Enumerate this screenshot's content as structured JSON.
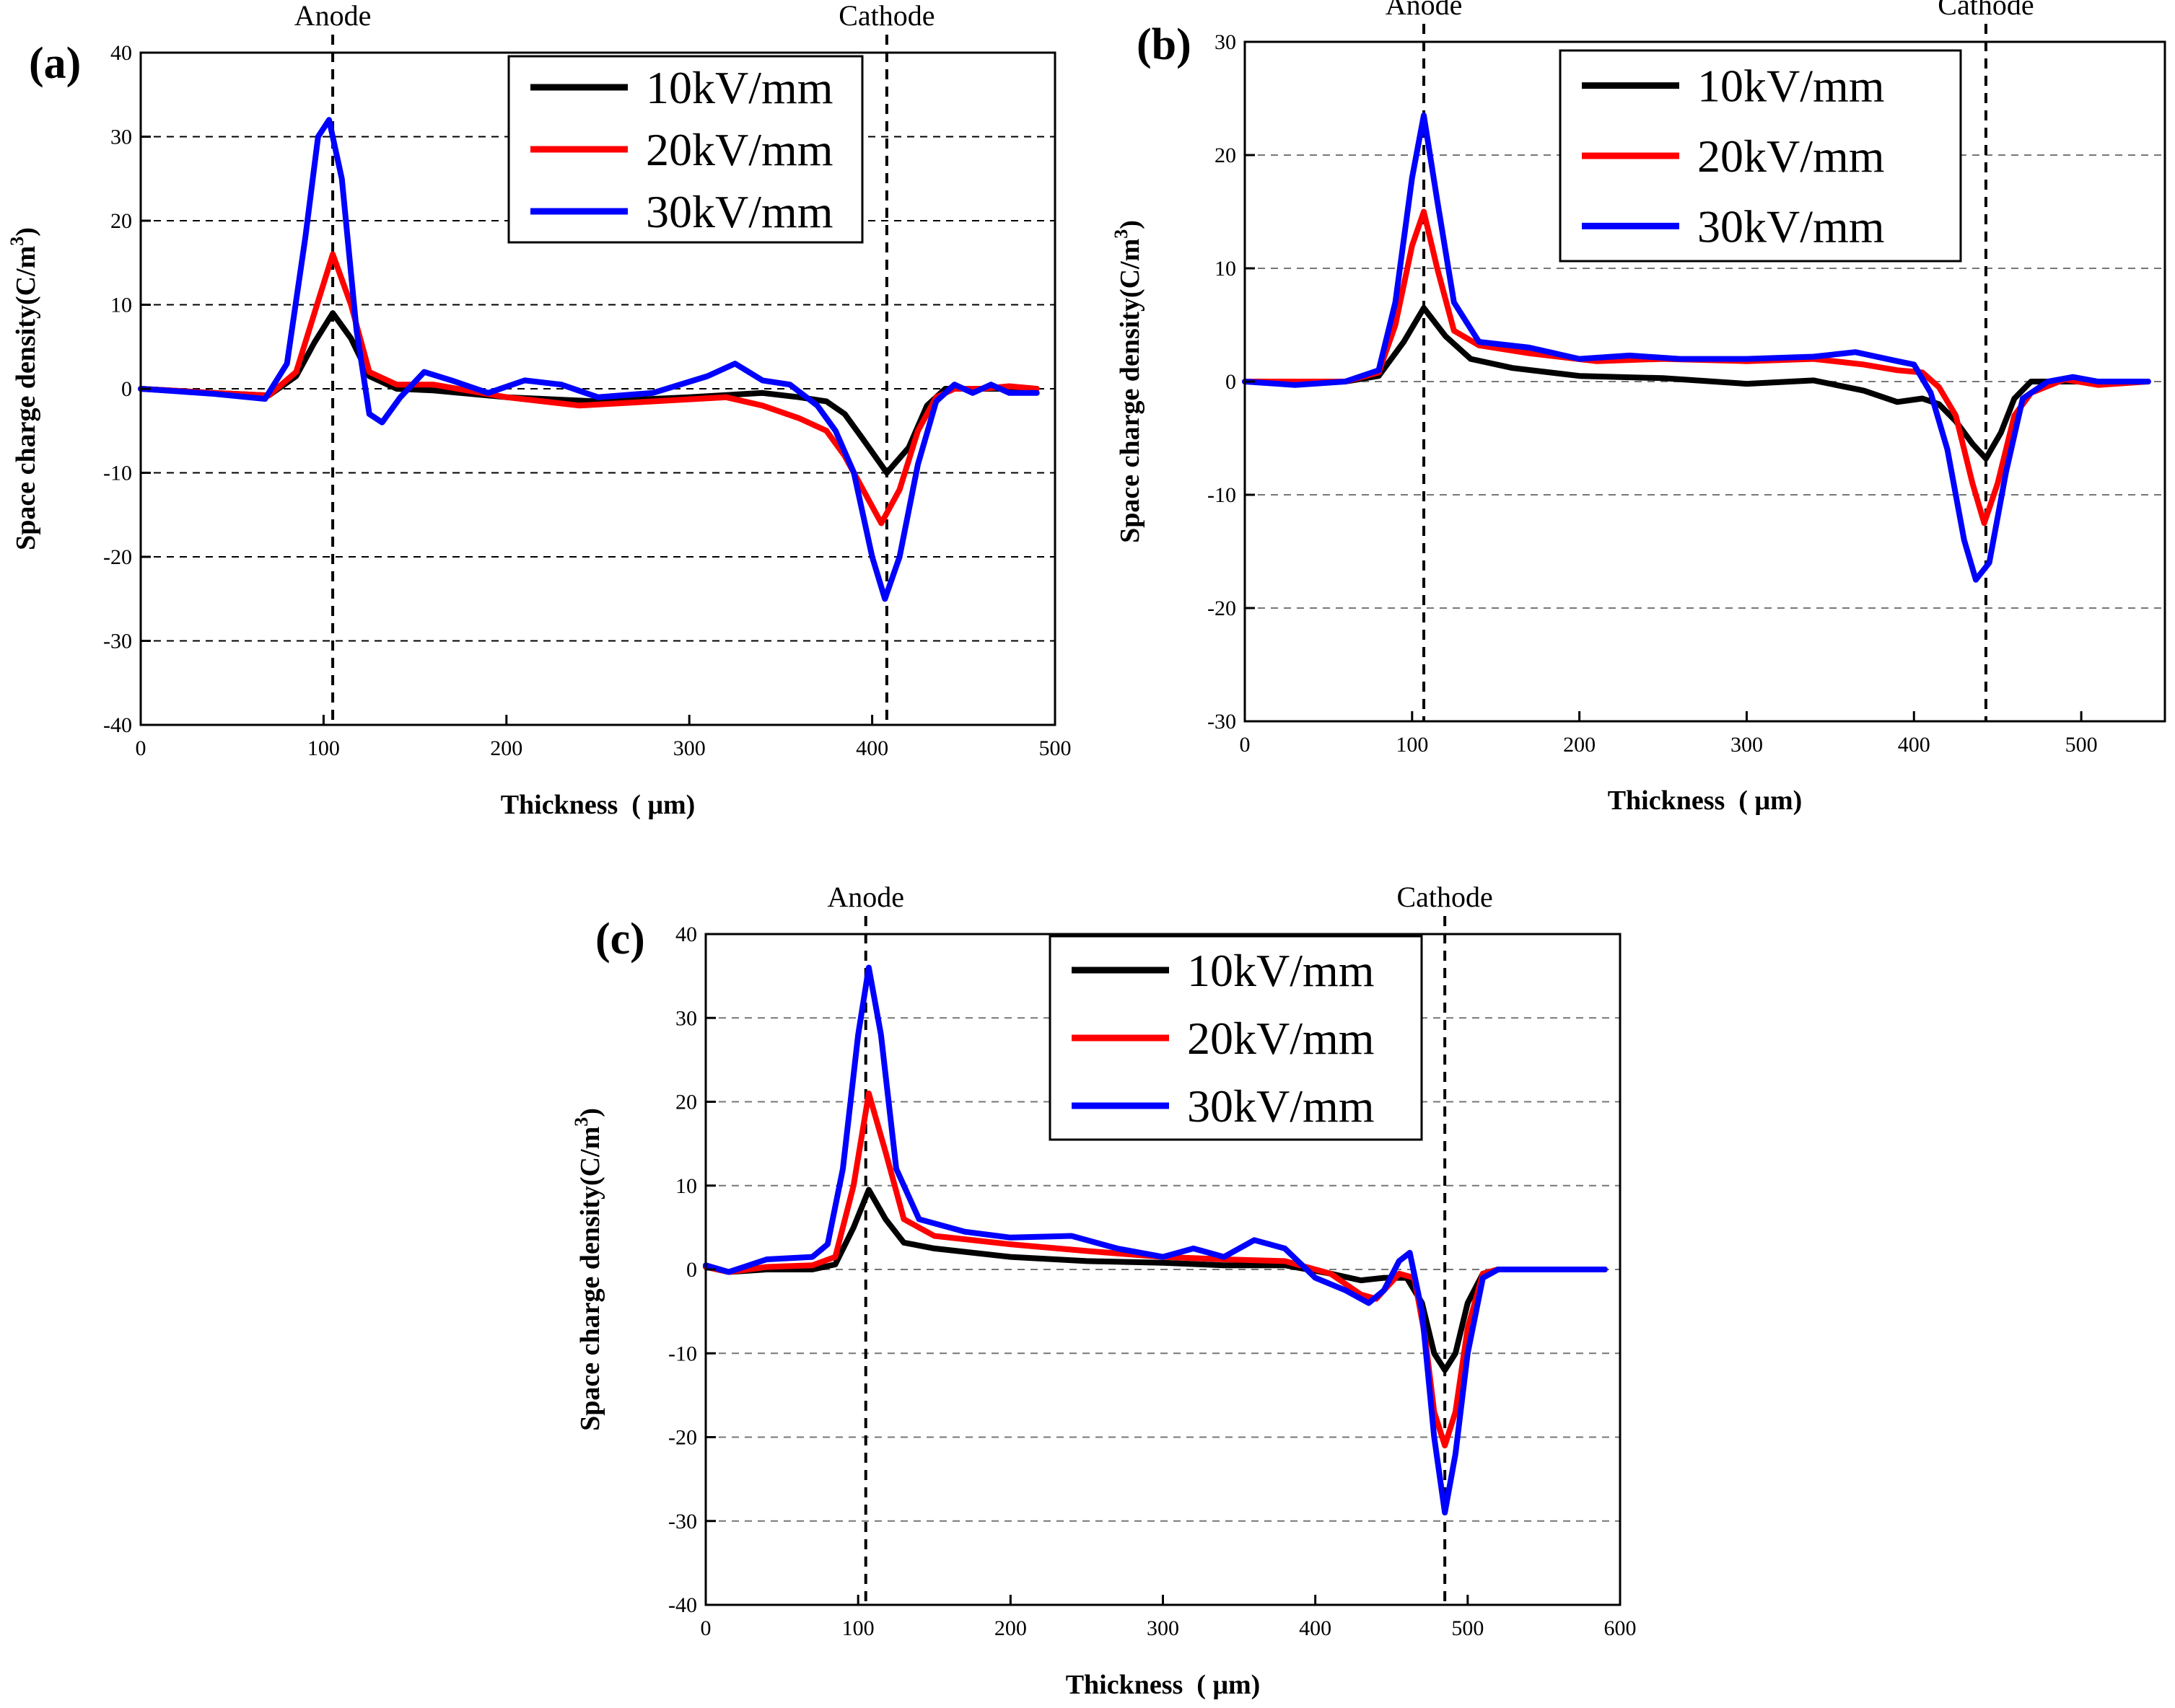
{
  "chart_data": [
    {
      "id": "a",
      "type": "line",
      "panel_label": "(a)",
      "anode_label": "Anode",
      "cathode_label": "Cathode",
      "anode_x": 105,
      "cathode_x": 408,
      "xlabel": "Thickness  ( μm)",
      "ylabel": "Space charge density(C/m",
      "ylabel_sup": "3",
      "ylabel_close": ")",
      "xlim": [
        0,
        500
      ],
      "ylim": [
        -40,
        40
      ],
      "xticks": [
        0,
        100,
        200,
        300,
        400,
        500
      ],
      "yticks": [
        -40,
        -30,
        -20,
        -10,
        0,
        10,
        20,
        30,
        40
      ],
      "grid": "horizontal dashed",
      "legend": "top-right",
      "series": [
        {
          "name": "10kV/mm",
          "color": "#000000",
          "x": [
            0,
            40,
            70,
            85,
            95,
            105,
            115,
            125,
            140,
            160,
            200,
            250,
            300,
            340,
            360,
            375,
            385,
            395,
            408,
            420,
            430,
            440,
            450,
            470,
            490
          ],
          "y": [
            0,
            -0.5,
            -0.8,
            1.5,
            5.5,
            9,
            6,
            1.5,
            0,
            -0.2,
            -1,
            -1.5,
            -1,
            -0.5,
            -1,
            -1.5,
            -3,
            -6,
            -10,
            -7,
            -2,
            0,
            0,
            0,
            0
          ]
        },
        {
          "name": "20kV/mm",
          "color": "#ff0000",
          "x": [
            0,
            40,
            70,
            85,
            95,
            105,
            115,
            125,
            140,
            160,
            200,
            240,
            280,
            320,
            340,
            360,
            375,
            385,
            395,
            405,
            415,
            425,
            435,
            445,
            460,
            475,
            490
          ],
          "y": [
            0,
            -0.5,
            -0.8,
            2,
            9,
            16,
            10,
            2,
            0.5,
            0.5,
            -1,
            -2,
            -1.5,
            -1,
            -2,
            -3.5,
            -5,
            -8,
            -12,
            -16,
            -12,
            -5,
            -1,
            0,
            0,
            0.3,
            0
          ]
        },
        {
          "name": "30kV/mm",
          "color": "#0000ff",
          "x": [
            0,
            40,
            68,
            80,
            90,
            97,
            103,
            110,
            118,
            125,
            132,
            142,
            155,
            170,
            190,
            210,
            230,
            250,
            280,
            310,
            325,
            340,
            355,
            370,
            380,
            390,
            400,
            407,
            415,
            425,
            435,
            445,
            455,
            465,
            475,
            490
          ],
          "y": [
            0,
            -0.6,
            -1.2,
            3,
            18,
            30,
            32,
            25,
            7,
            -3,
            -4,
            -1,
            2,
            1,
            -0.5,
            1,
            0.5,
            -1,
            -0.5,
            1.5,
            3,
            1,
            0.5,
            -2,
            -5,
            -10,
            -20,
            -25,
            -20,
            -9,
            -1.5,
            0.5,
            -0.5,
            0.5,
            -0.5,
            -0.5
          ]
        }
      ]
    },
    {
      "id": "b",
      "type": "line",
      "panel_label": "(b)",
      "anode_label": "Anode",
      "cathode_label": "Cathode",
      "anode_x": 107,
      "cathode_x": 443,
      "xlabel": "Thickness  ( μm)",
      "ylabel": "Space charge density(C/m",
      "ylabel_sup": "3",
      "ylabel_close": ")",
      "xlim": [
        0,
        550
      ],
      "ylim": [
        -30,
        30
      ],
      "xticks": [
        0,
        100,
        200,
        300,
        400,
        500
      ],
      "yticks": [
        -30,
        -20,
        -10,
        0,
        10,
        20,
        30
      ],
      "grid": "horizontal dashed",
      "legend": "top-right",
      "series": [
        {
          "name": "10kV/mm",
          "color": "#000000",
          "x": [
            0,
            30,
            60,
            80,
            95,
            107,
            120,
            135,
            160,
            200,
            250,
            300,
            340,
            370,
            390,
            405,
            415,
            425,
            435,
            443,
            452,
            460,
            470,
            490,
            510,
            540
          ],
          "y": [
            0,
            0,
            0,
            0.5,
            3.5,
            6.5,
            4,
            2,
            1.2,
            0.5,
            0.3,
            -0.2,
            0.1,
            -0.8,
            -1.8,
            -1.5,
            -2,
            -3.5,
            -5.5,
            -6.8,
            -4.5,
            -1.5,
            0,
            0,
            0,
            0
          ]
        },
        {
          "name": "20kV/mm",
          "color": "#ff0000",
          "x": [
            0,
            30,
            60,
            80,
            90,
            100,
            107,
            115,
            125,
            140,
            170,
            210,
            250,
            300,
            340,
            370,
            390,
            405,
            415,
            425,
            435,
            442,
            450,
            460,
            470,
            490,
            510,
            540
          ],
          "y": [
            0,
            0,
            0,
            0.8,
            5,
            12,
            15,
            10,
            4.5,
            3.2,
            2.5,
            1.8,
            2,
            1.8,
            2,
            1.5,
            1,
            0.8,
            -0.5,
            -3,
            -9,
            -12.5,
            -9,
            -3,
            -1,
            0.2,
            -0.3,
            0
          ]
        },
        {
          "name": "30kV/mm",
          "color": "#0000ff",
          "x": [
            0,
            30,
            60,
            80,
            90,
            100,
            107,
            115,
            125,
            140,
            170,
            200,
            230,
            260,
            300,
            340,
            365,
            390,
            400,
            410,
            420,
            430,
            437,
            445,
            455,
            465,
            480,
            495,
            510,
            540
          ],
          "y": [
            0,
            -0.3,
            0,
            1,
            7,
            18,
            23.5,
            16,
            7,
            3.5,
            3,
            2,
            2.3,
            2,
            2,
            2.2,
            2.6,
            1.8,
            1.5,
            -1,
            -6,
            -14,
            -17.5,
            -16,
            -8,
            -1.5,
            0,
            0.4,
            0,
            0
          ]
        }
      ]
    },
    {
      "id": "c",
      "type": "line",
      "panel_label": "(c)",
      "anode_label": "Anode",
      "cathode_label": "Cathode",
      "anode_x": 105,
      "cathode_x": 485,
      "xlabel": "Thickness  ( μm)",
      "ylabel": "Space charge density(C/m",
      "ylabel_sup": "3",
      "ylabel_close": ")",
      "xlim": [
        0,
        600
      ],
      "ylim": [
        -40,
        40
      ],
      "xticks": [
        0,
        100,
        200,
        300,
        400,
        500,
        600
      ],
      "yticks": [
        -40,
        -30,
        -20,
        -10,
        0,
        10,
        20,
        30,
        40
      ],
      "grid": "horizontal dashed",
      "legend": "top-right",
      "series": [
        {
          "name": "10kV/mm",
          "color": "#000000",
          "x": [
            0,
            15,
            40,
            70,
            85,
            97,
            107,
            118,
            130,
            150,
            200,
            250,
            300,
            340,
            380,
            410,
            430,
            445,
            460,
            470,
            478,
            485,
            492,
            500,
            510,
            520,
            550,
            590
          ],
          "y": [
            0.3,
            -0.3,
            0,
            0,
            0.6,
            5,
            9.5,
            6,
            3.2,
            2.5,
            1.5,
            1,
            0.8,
            0.5,
            0.5,
            -0.5,
            -1.3,
            -1,
            -1,
            -4,
            -10,
            -12,
            -10,
            -4,
            -0.5,
            0,
            0,
            0
          ]
        },
        {
          "name": "20kV/mm",
          "color": "#ff0000",
          "x": [
            0,
            15,
            40,
            70,
            85,
            97,
            107,
            118,
            130,
            150,
            200,
            250,
            300,
            340,
            380,
            410,
            430,
            440,
            455,
            465,
            472,
            478,
            485,
            492,
            500,
            510,
            520,
            550,
            590
          ],
          "y": [
            0.3,
            -0.3,
            0.3,
            0.5,
            1.5,
            10,
            21,
            14,
            6,
            4,
            3,
            2.2,
            1.5,
            1.2,
            1,
            -0.5,
            -3,
            -3.5,
            -0.5,
            -1,
            -8,
            -17,
            -21,
            -17,
            -7,
            -0.5,
            0,
            0,
            0
          ]
        },
        {
          "name": "30kV/mm",
          "color": "#0000ff",
          "x": [
            0,
            15,
            40,
            70,
            80,
            90,
            100,
            107,
            115,
            125,
            140,
            170,
            200,
            240,
            270,
            300,
            320,
            340,
            360,
            380,
            400,
            420,
            435,
            445,
            455,
            462,
            470,
            478,
            485,
            492,
            500,
            510,
            520,
            550,
            590
          ],
          "y": [
            0.5,
            -0.3,
            1.2,
            1.5,
            3,
            12,
            28,
            36,
            28,
            12,
            6,
            4.5,
            3.8,
            4,
            2.5,
            1.5,
            2.5,
            1.5,
            3.5,
            2.5,
            -1,
            -2.5,
            -4,
            -2.5,
            1,
            2,
            -5,
            -20,
            -29,
            -22,
            -10,
            -1,
            0,
            0,
            0
          ]
        }
      ]
    }
  ]
}
